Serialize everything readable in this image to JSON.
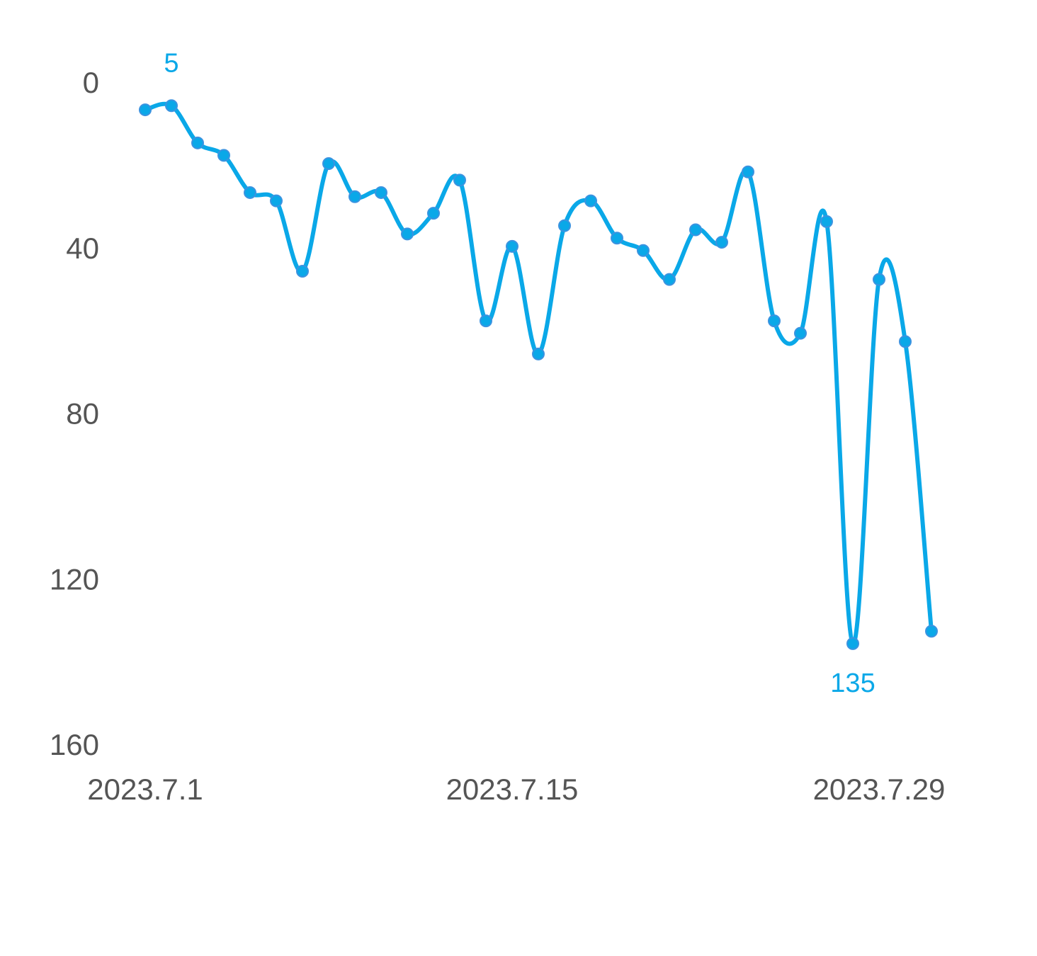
{
  "chart_data": {
    "type": "line",
    "categories": [
      "2023.7.1",
      null,
      null,
      null,
      null,
      null,
      null,
      null,
      null,
      null,
      null,
      null,
      null,
      null,
      "2023.7.15",
      null,
      null,
      null,
      null,
      null,
      null,
      null,
      null,
      null,
      null,
      null,
      null,
      null,
      "2023.7.29",
      null,
      null
    ],
    "values": [
      6,
      5,
      14,
      17,
      26,
      28,
      45,
      19,
      27,
      26,
      36,
      31,
      23,
      57,
      39,
      65,
      34,
      28,
      37,
      40,
      47,
      35,
      38,
      21,
      57,
      60,
      33,
      135,
      47,
      62,
      132
    ],
    "color": "#0aa8e8",
    "ylim": [
      0,
      160
    ],
    "yticks": [
      0,
      40,
      80,
      120,
      160
    ],
    "y_inverse": true,
    "smooth": true,
    "mark_points": [
      "min",
      "max"
    ]
  }
}
